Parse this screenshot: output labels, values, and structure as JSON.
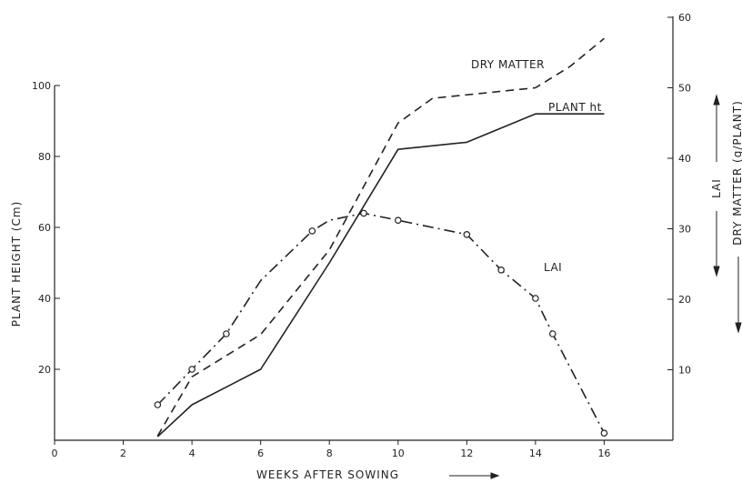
{
  "chart_data": {
    "type": "line",
    "xlabel": "WEEKS AFTER SOWING",
    "ylabel_left": "PLANT HEIGHT (Cm)",
    "ylabel_right_lai": "LAI",
    "ylabel_right_dm": "DRY MATTER (g/PLANT)",
    "xlim": [
      0,
      18
    ],
    "ylim_left": [
      0,
      100
    ],
    "ylim_right": [
      0,
      60
    ],
    "x_ticks": [
      0,
      2,
      4,
      6,
      8,
      10,
      12,
      14,
      16
    ],
    "y_left_ticks": [
      20,
      40,
      60,
      80,
      100
    ],
    "y_right_ticks": [
      10,
      20,
      30,
      40,
      50,
      60
    ],
    "series": [
      {
        "name": "PLANT ht",
        "axis": "left",
        "style": "solid",
        "markers": false,
        "x": [
          3,
          4,
          6,
          8,
          10,
          12,
          14,
          16
        ],
        "y": [
          1,
          10,
          20,
          50,
          82,
          84,
          92,
          92
        ]
      },
      {
        "name": "DRY MATTER",
        "axis": "right",
        "style": "dashed",
        "markers": false,
        "x": [
          3,
          4,
          6,
          8,
          10,
          11,
          12,
          14,
          15,
          16
        ],
        "y": [
          0.6,
          9,
          15,
          27,
          45,
          48.5,
          49,
          50,
          53,
          57
        ]
      },
      {
        "name": "LAI",
        "axis": "left",
        "style": "dashdot",
        "markers": true,
        "x": [
          3,
          4,
          5,
          6,
          7.5,
          8,
          9,
          10,
          12,
          13,
          14,
          14.5,
          16
        ],
        "y": [
          10,
          20,
          30,
          45,
          59,
          62,
          64,
          62,
          58,
          48,
          40,
          30,
          2
        ],
        "marker_x": [
          3,
          4,
          5,
          7.5,
          9,
          10,
          12,
          13,
          14,
          14.5,
          16
        ],
        "marker_y": [
          10,
          20,
          30,
          59,
          64,
          62,
          58,
          48,
          40,
          30,
          2
        ]
      }
    ]
  }
}
